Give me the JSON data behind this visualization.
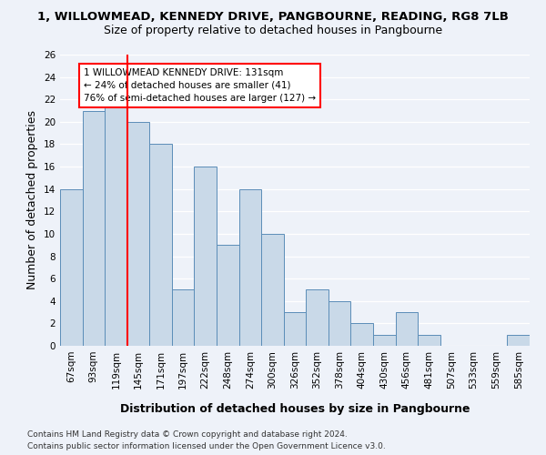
{
  "title_line1": "1, WILLOWMEAD, KENNEDY DRIVE, PANGBOURNE, READING, RG8 7LB",
  "title_line2": "Size of property relative to detached houses in Pangbourne",
  "xlabel": "Distribution of detached houses by size in Pangbourne",
  "ylabel": "Number of detached properties",
  "categories": [
    "67sqm",
    "93sqm",
    "119sqm",
    "145sqm",
    "171sqm",
    "197sqm",
    "222sqm",
    "248sqm",
    "274sqm",
    "300sqm",
    "326sqm",
    "352sqm",
    "378sqm",
    "404sqm",
    "430sqm",
    "456sqm",
    "481sqm",
    "507sqm",
    "533sqm",
    "559sqm",
    "585sqm"
  ],
  "values": [
    14,
    21,
    22,
    20,
    18,
    5,
    16,
    9,
    14,
    10,
    3,
    5,
    4,
    2,
    1,
    3,
    1,
    0,
    0,
    0,
    1
  ],
  "bar_color": "#c9d9e8",
  "bar_edge_color": "#5b8db8",
  "red_line_index": 2,
  "annotation_text": "1 WILLOWMEAD KENNEDY DRIVE: 131sqm\n← 24% of detached houses are smaller (41)\n76% of semi-detached houses are larger (127) →",
  "annotation_box_color": "white",
  "annotation_box_edge": "red",
  "ylim": [
    0,
    26
  ],
  "yticks": [
    0,
    2,
    4,
    6,
    8,
    10,
    12,
    14,
    16,
    18,
    20,
    22,
    24,
    26
  ],
  "footer_line1": "Contains HM Land Registry data © Crown copyright and database right 2024.",
  "footer_line2": "Contains public sector information licensed under the Open Government Licence v3.0.",
  "background_color": "#eef2f9",
  "grid_color": "#ffffff",
  "title1_fontsize": 9.5,
  "title2_fontsize": 9,
  "axis_label_fontsize": 9,
  "tick_fontsize": 7.5,
  "annotation_fontsize": 7.5,
  "footer_fontsize": 6.5
}
